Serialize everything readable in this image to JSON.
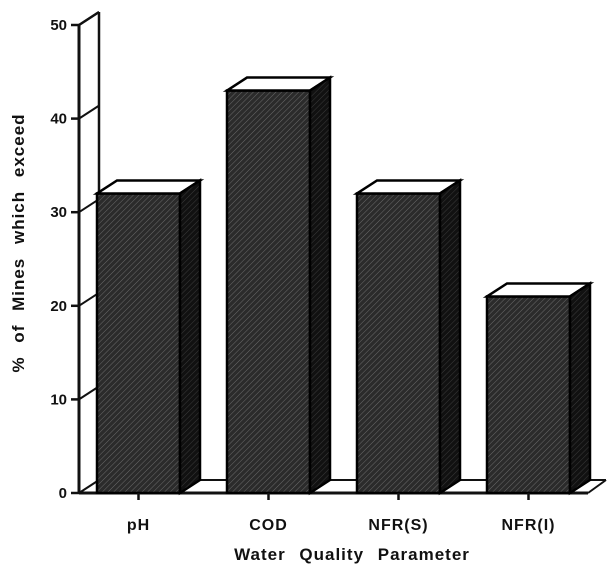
{
  "chart_data": {
    "type": "bar",
    "categories": [
      "pH",
      "COD",
      "NFR(S)",
      "NFR(I)"
    ],
    "values": [
      32,
      43,
      32,
      21
    ],
    "xlabel": "Water Quality Parameter",
    "ylabel": "% of Mines which exceed",
    "ylim": [
      0,
      50
    ],
    "yticks": [
      0,
      10,
      20,
      30,
      40,
      50
    ],
    "style": "3d-hatched",
    "bar_color": "#2a2a2a",
    "grid": false,
    "legend": "none"
  }
}
